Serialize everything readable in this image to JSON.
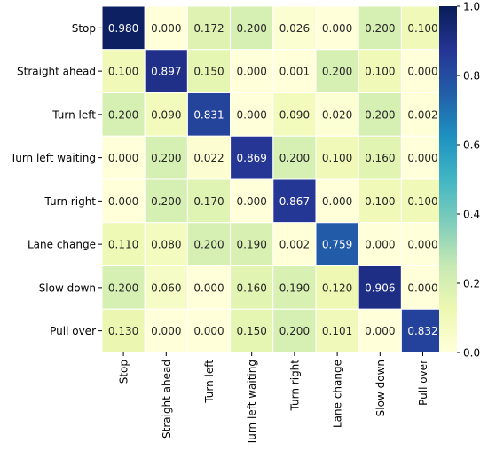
{
  "chart_data": {
    "type": "heatmap",
    "rows": [
      "Stop",
      "Straight ahead",
      "Turn left",
      "Turn left waiting",
      "Turn right",
      "Lane change",
      "Slow down",
      "Pull over"
    ],
    "columns": [
      "Stop",
      "Straight ahead",
      "Turn left",
      "Turn left waiting",
      "Turn right",
      "Lane change",
      "Slow down",
      "Pull over"
    ],
    "values": [
      [
        0.98,
        0.0,
        0.172,
        0.2,
        0.026,
        0.0,
        0.2,
        0.1
      ],
      [
        0.1,
        0.897,
        0.15,
        0.0,
        0.001,
        0.2,
        0.1,
        0.0
      ],
      [
        0.2,
        0.09,
        0.831,
        0.0,
        0.09,
        0.02,
        0.2,
        0.002
      ],
      [
        0.0,
        0.2,
        0.022,
        0.869,
        0.2,
        0.1,
        0.16,
        0.0
      ],
      [
        0.0,
        0.2,
        0.17,
        0.0,
        0.867,
        0.0,
        0.1,
        0.1
      ],
      [
        0.11,
        0.08,
        0.2,
        0.19,
        0.002,
        0.759,
        0.0,
        0.0
      ],
      [
        0.2,
        0.06,
        0.0,
        0.16,
        0.19,
        0.12,
        0.906,
        0.0
      ],
      [
        0.13,
        0.0,
        0.0,
        0.15,
        0.2,
        0.101,
        0.0,
        0.832
      ]
    ],
    "cell_labels": [
      [
        "0.980",
        "0.000",
        "0.172",
        "0.200",
        "0.026",
        "0.000",
        "0.200",
        "0.100"
      ],
      [
        "0.100",
        "0.897",
        "0.150",
        "0.000",
        "0.001",
        "0.200",
        "0.100",
        "0.000"
      ],
      [
        "0.200",
        "0.090",
        "0.831",
        "0.000",
        "0.090",
        "0.020",
        "0.200",
        "0.002"
      ],
      [
        "0.000",
        "0.200",
        "0.022",
        "0.869",
        "0.200",
        "0.100",
        "0.160",
        "0.000"
      ],
      [
        "0.000",
        "0.200",
        "0.170",
        "0.000",
        "0.867",
        "0.000",
        "0.100",
        "0.100"
      ],
      [
        "0.110",
        "0.080",
        "0.200",
        "0.190",
        "0.002",
        "0.759",
        "0.000",
        "0.000"
      ],
      [
        "0.200",
        "0.060",
        "0.000",
        "0.160",
        "0.190",
        "0.120",
        "0.906",
        "0.000"
      ],
      [
        "0.130",
        "0.000",
        "0.000",
        "0.150",
        "0.200",
        "0.101",
        "0.000",
        "0.832"
      ]
    ],
    "colormap": "YlGnBu",
    "vmin": 0.0,
    "vmax": 1.0,
    "colorbar_ticks": [
      0.0,
      0.2,
      0.4,
      0.6,
      0.8,
      1.0
    ],
    "colorbar_tick_labels": [
      "0.0",
      "0.2",
      "0.4",
      "0.6",
      "0.8",
      "1.0"
    ],
    "grid": true,
    "grid_color": "#ffffff",
    "title": "",
    "xlabel": "",
    "ylabel": ""
  }
}
